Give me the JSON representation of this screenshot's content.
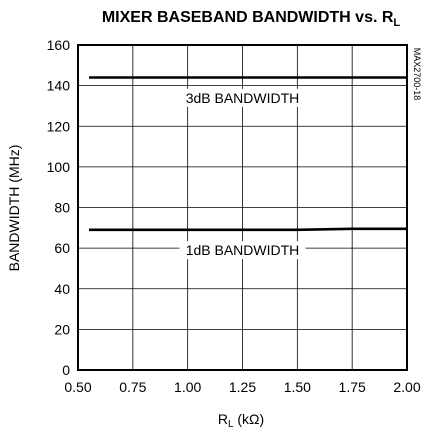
{
  "chart_data": {
    "type": "line",
    "title": "MIXER BASEBAND BANDWIDTH vs. R",
    "title_sub": "L",
    "xlabel": "R",
    "xlabel_sub": "L",
    "xlabel_units": " (kΩ)",
    "ylabel": "BANDWIDTH (MHz)",
    "xlim": [
      0.5,
      2.0
    ],
    "ylim": [
      0,
      160
    ],
    "xticks": [
      "0.50",
      "0.75",
      "1.00",
      "1.25",
      "1.50",
      "1.75",
      "2.00"
    ],
    "yticks": [
      "0",
      "20",
      "40",
      "60",
      "80",
      "100",
      "120",
      "140",
      "160"
    ],
    "grid": true,
    "series": [
      {
        "name": "3dB BANDWIDTH",
        "x": [
          0.55,
          0.75,
          1.0,
          1.25,
          1.5,
          1.75,
          2.0
        ],
        "y": [
          144,
          144,
          144,
          144,
          144,
          144,
          144
        ]
      },
      {
        "name": "1dB BANDWIDTH",
        "x": [
          0.55,
          0.75,
          1.0,
          1.25,
          1.5,
          1.75,
          2.0
        ],
        "y": [
          69,
          69,
          69,
          69,
          69,
          69.5,
          69.5
        ]
      }
    ],
    "part_code": "MAX2700-18"
  }
}
